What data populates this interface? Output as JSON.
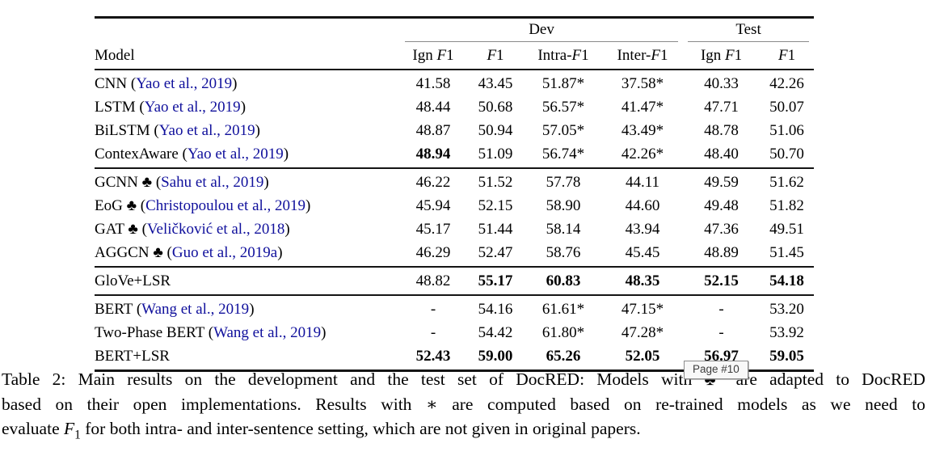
{
  "colors": {
    "citation_blue": "#10109C",
    "rule_dark": "#141414",
    "rule_light": "#8A8A8A",
    "tooltip_border": "#8D8D8D",
    "tooltip_bg": "#F8F8F8"
  },
  "tooltip": {
    "label": "Page #10"
  },
  "table": {
    "groups": [
      {
        "label": "Dev",
        "span": 4
      },
      {
        "label": "Test",
        "span": 2
      }
    ],
    "model_header": "Model",
    "col_headers": [
      "Ign F1",
      "F1",
      "Intra-F1",
      "Inter-F1",
      "Ign F1",
      "F1"
    ],
    "blocks": [
      {
        "rows": [
          {
            "name": "CNN",
            "club": false,
            "cite": "Yao et al., 2019",
            "values": [
              "41.58",
              "43.45",
              "51.87*",
              "37.58*",
              "40.33",
              "42.26"
            ],
            "bold": [
              0,
              0,
              0,
              0,
              0,
              0
            ]
          },
          {
            "name": "LSTM",
            "club": false,
            "cite": "Yao et al., 2019",
            "values": [
              "48.44",
              "50.68",
              "56.57*",
              "41.47*",
              "47.71",
              "50.07"
            ],
            "bold": [
              0,
              0,
              0,
              0,
              0,
              0
            ]
          },
          {
            "name": "BiLSTM",
            "club": false,
            "cite": "Yao et al., 2019",
            "values": [
              "48.87",
              "50.94",
              "57.05*",
              "43.49*",
              "48.78",
              "51.06"
            ],
            "bold": [
              0,
              0,
              0,
              0,
              0,
              0
            ]
          },
          {
            "name": "ContexAware",
            "club": false,
            "cite": "Yao et al., 2019",
            "values": [
              "48.94",
              "51.09",
              "56.74*",
              "42.26*",
              "48.40",
              "50.70"
            ],
            "bold": [
              1,
              0,
              0,
              0,
              0,
              0
            ]
          }
        ]
      },
      {
        "rows": [
          {
            "name": "GCNN",
            "club": true,
            "cite": "Sahu et al., 2019",
            "values": [
              "46.22",
              "51.52",
              "57.78",
              "44.11",
              "49.59",
              "51.62"
            ],
            "bold": [
              0,
              0,
              0,
              0,
              0,
              0
            ]
          },
          {
            "name": "EoG",
            "club": true,
            "cite": "Christopoulou et al., 2019",
            "values": [
              "45.94",
              "52.15",
              "58.90",
              "44.60",
              "49.48",
              "51.82"
            ],
            "bold": [
              0,
              0,
              0,
              0,
              0,
              0
            ]
          },
          {
            "name": "GAT",
            "club": true,
            "cite": "Veličković et al., 2018",
            "values": [
              "45.17",
              "51.44",
              "58.14",
              "43.94",
              "47.36",
              "49.51"
            ],
            "bold": [
              0,
              0,
              0,
              0,
              0,
              0
            ]
          },
          {
            "name": "AGGCN",
            "club": true,
            "cite": "Guo et al., 2019a",
            "values": [
              "46.29",
              "52.47",
              "58.76",
              "45.45",
              "48.89",
              "51.45"
            ],
            "bold": [
              0,
              0,
              0,
              0,
              0,
              0
            ]
          }
        ]
      },
      {
        "rows": [
          {
            "name": "GloVe+LSR",
            "club": false,
            "cite": null,
            "values": [
              "48.82",
              "55.17",
              "60.83",
              "48.35",
              "52.15",
              "54.18"
            ],
            "bold": [
              0,
              1,
              1,
              1,
              1,
              1
            ]
          }
        ]
      },
      {
        "rows": [
          {
            "name": "BERT",
            "club": false,
            "cite": "Wang et al., 2019",
            "values": [
              "-",
              "54.16",
              "61.61*",
              "47.15*",
              "-",
              "53.20"
            ],
            "bold": [
              0,
              0,
              0,
              0,
              0,
              0
            ]
          },
          {
            "name": "Two-Phase BERT",
            "club": false,
            "cite": "Wang et al., 2019",
            "values": [
              "-",
              "54.42",
              "61.80*",
              "47.28*",
              "-",
              "53.92"
            ],
            "bold": [
              0,
              0,
              0,
              0,
              0,
              0
            ]
          },
          {
            "name": "BERT+LSR",
            "club": false,
            "cite": null,
            "values": [
              "52.43",
              "59.00",
              "65.26",
              "52.05",
              "56.97",
              "59.05"
            ],
            "bold": [
              1,
              1,
              1,
              1,
              1,
              1
            ]
          }
        ]
      }
    ]
  },
  "caption": {
    "club_symbol": "♣",
    "star_symbol": "∗",
    "lines": [
      "Table 2:  Main results on the development and the test set of DocRED: Models with ♣ are adapted to DocRED",
      "based on their open implementations.  Results with ∗ are computed based on re-trained models as we need to",
      "evaluate F1 for both intra- and inter-sentence setting, which are not given in original papers."
    ]
  }
}
